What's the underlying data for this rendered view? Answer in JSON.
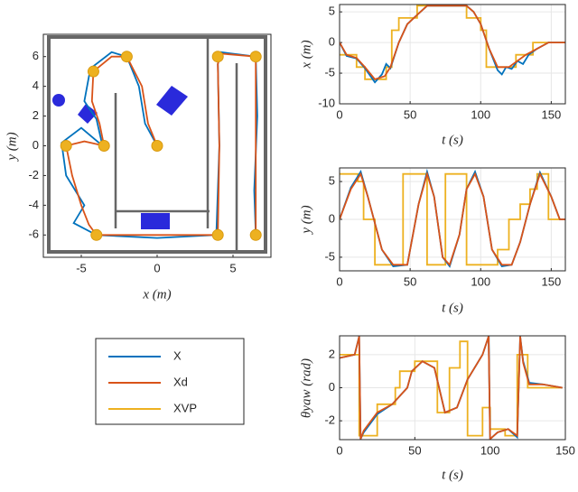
{
  "chart_data": [
    {
      "type": "trajectory",
      "xlabel": "x (m)",
      "ylabel": "y (m)",
      "xlim": [
        -7.5,
        7.5
      ],
      "ylim": [
        -7.5,
        7.5
      ],
      "xticks": [
        -5,
        0,
        5
      ],
      "yticks": [
        -6,
        -4,
        -2,
        0,
        2,
        4,
        6
      ],
      "grid": false,
      "series": [
        {
          "name": "X",
          "color": "#0072bd",
          "mode": "line",
          "x": [
            0,
            -0.8,
            -1.2,
            -2,
            -3,
            -4.4,
            -4.8,
            -4,
            -3.6,
            -5,
            -6.3,
            -6,
            -4.8,
            -5.5,
            -4,
            0,
            3.9,
            4.1,
            4,
            4.2,
            6.5,
            6.6,
            6.4,
            6.5
          ],
          "values": [
            0,
            1.5,
            4,
            6,
            6.3,
            5.2,
            3,
            1.8,
            0,
            1.2,
            0.2,
            -2,
            -4,
            -5.2,
            -6,
            -6.2,
            -6,
            0,
            5.5,
            6.3,
            6,
            2,
            -3,
            -6
          ]
        },
        {
          "name": "Xd",
          "color": "#d95319",
          "mode": "line",
          "x": [
            0,
            -0.6,
            -1,
            -2,
            -3,
            -4.2,
            -4.3,
            -3.8,
            -3.5,
            -4.8,
            -6,
            -5.6,
            -5,
            -4.5,
            -4,
            0,
            4,
            4.1,
            4,
            4.2,
            6.5,
            6.5,
            6.5,
            6.5
          ],
          "values": [
            0,
            1.5,
            4,
            6,
            6,
            5,
            3,
            1.5,
            0,
            0.3,
            0,
            -2,
            -4,
            -5.3,
            -6,
            -6,
            -6,
            0,
            5.5,
            6.2,
            6,
            2,
            -3,
            -6
          ]
        },
        {
          "name": "XVP",
          "color": "#edb120",
          "mode": "markers",
          "x": [
            -4.2,
            -2,
            -6,
            -3.5,
            0,
            4,
            6.5,
            -4,
            4,
            6.5
          ],
          "values": [
            5,
            6,
            0,
            0,
            0,
            6,
            6,
            -6,
            -6,
            -6
          ]
        }
      ]
    },
    {
      "type": "line",
      "xlabel": "t (s)",
      "ylabel": "x (m)",
      "xlim": [
        0,
        160
      ],
      "ylim": [
        -10,
        6.2
      ],
      "xticks": [
        0,
        50,
        100,
        150
      ],
      "yticks": [
        -10,
        -5,
        0,
        5
      ],
      "grid": true,
      "series": [
        {
          "color": "#edb120",
          "x": [
            0,
            12,
            12,
            18,
            18,
            33,
            33,
            37,
            37,
            42,
            42,
            55,
            55,
            90,
            90,
            100,
            100,
            104,
            104,
            125,
            125,
            137,
            137,
            160
          ],
          "values": [
            -2,
            -2,
            -4,
            -4,
            -6,
            -6,
            -4,
            -4,
            2,
            2,
            4,
            4,
            6,
            6,
            4,
            4,
            2,
            2,
            -4,
            -4,
            -2,
            -2,
            0,
            0
          ]
        },
        {
          "color": "#0072bd",
          "x": [
            0,
            5,
            12,
            18,
            25,
            30,
            33,
            36,
            42,
            48,
            55,
            62,
            90,
            95,
            100,
            106,
            112,
            115,
            118,
            122,
            126,
            130,
            134,
            140,
            148,
            160
          ],
          "values": [
            0,
            -2.2,
            -2.6,
            -4.2,
            -6.5,
            -5.2,
            -3.5,
            -4.2,
            0,
            3,
            4.5,
            6,
            6,
            5,
            3,
            -1,
            -4.5,
            -5.2,
            -4,
            -4.3,
            -3,
            -3.5,
            -2,
            -1,
            0,
            0
          ]
        },
        {
          "color": "#d95319",
          "x": [
            0,
            5,
            12,
            18,
            25,
            32,
            36,
            42,
            48,
            55,
            62,
            90,
            95,
            100,
            106,
            112,
            120,
            126,
            132,
            140,
            148,
            160
          ],
          "values": [
            0,
            -2,
            -2.5,
            -4,
            -6,
            -5.5,
            -4,
            0,
            3,
            4.5,
            6,
            6,
            5,
            3,
            -1,
            -4,
            -4,
            -3,
            -2,
            -1,
            0,
            0
          ]
        }
      ]
    },
    {
      "type": "line",
      "xlabel": "t (s)",
      "ylabel": "y (m)",
      "xlim": [
        0,
        160
      ],
      "ylim": [
        -6.8,
        6.8
      ],
      "xticks": [
        0,
        50,
        100,
        150
      ],
      "yticks": [
        -5,
        0,
        5
      ],
      "grid": true,
      "series": [
        {
          "color": "#edb120",
          "x": [
            0,
            13,
            13,
            17,
            17,
            25,
            25,
            45,
            45,
            62,
            62,
            75,
            75,
            90,
            90,
            112,
            112,
            120,
            120,
            128,
            128,
            135,
            135,
            140,
            140,
            148,
            148,
            160
          ],
          "values": [
            6,
            6,
            5,
            5,
            0,
            0,
            -6,
            -6,
            6,
            6,
            -6,
            -6,
            6,
            6,
            -6,
            -6,
            -4,
            -4,
            0,
            0,
            2,
            2,
            4,
            4,
            6,
            6,
            0,
            0
          ]
        },
        {
          "color": "#0072bd",
          "x": [
            0,
            8,
            15,
            20,
            30,
            38,
            48,
            56,
            62,
            67,
            73,
            78,
            85,
            90,
            96,
            102,
            108,
            115,
            122,
            128,
            135,
            142,
            150,
            156,
            160
          ],
          "values": [
            0,
            4.2,
            6.3,
            3,
            -4,
            -6.2,
            -6,
            2,
            6.3,
            3,
            -5,
            -6.2,
            -2,
            4,
            6.3,
            3,
            -4,
            -6.2,
            -6,
            -3,
            2,
            6.2,
            3,
            0,
            0
          ]
        },
        {
          "color": "#d95319",
          "x": [
            0,
            8,
            15,
            20,
            30,
            38,
            48,
            56,
            62,
            67,
            73,
            78,
            85,
            90,
            96,
            102,
            108,
            115,
            122,
            128,
            135,
            142,
            150,
            156,
            160
          ],
          "values": [
            0,
            4,
            6,
            3,
            -4,
            -6,
            -6,
            2,
            6,
            3,
            -5,
            -6,
            -2,
            4,
            6,
            3,
            -4,
            -6,
            -6,
            -3,
            2,
            6,
            3,
            0,
            0
          ]
        }
      ]
    },
    {
      "type": "line",
      "xlabel": "t (s)",
      "ylabel": "θyaw (rad)",
      "xlim": [
        0,
        150
      ],
      "ylim": [
        -3.14,
        3.14
      ],
      "xticks": [
        0,
        50,
        100,
        150
      ],
      "yticks": [
        -2,
        0,
        2
      ],
      "grid": true,
      "series": [
        {
          "color": "#edb120",
          "x": [
            0,
            13,
            13,
            25,
            25,
            37,
            37,
            40,
            40,
            50,
            50,
            65,
            65,
            73,
            73,
            80,
            80,
            85,
            85,
            95,
            95,
            100,
            100,
            110,
            110,
            118,
            118,
            125,
            125,
            148
          ],
          "values": [
            2,
            2,
            -2.9,
            -2.9,
            -1,
            -1,
            0,
            0,
            1,
            1,
            1.6,
            1.6,
            -1.5,
            -1.5,
            1.2,
            1.2,
            2.8,
            2.8,
            -2.9,
            -2.9,
            -1.2,
            -1.2,
            -2.5,
            -2.5,
            -2.9,
            -2.9,
            2,
            2,
            0,
            0
          ]
        },
        {
          "color": "#0072bd",
          "x": [
            0,
            10,
            13,
            14,
            16,
            25,
            35,
            45,
            48,
            55,
            63,
            70,
            78,
            85,
            95,
            99,
            100,
            105,
            112,
            118,
            120,
            122,
            126,
            135,
            148
          ],
          "values": [
            1.8,
            2,
            3.1,
            -3.1,
            -2.7,
            -1.6,
            -1,
            0,
            1,
            1.6,
            1.2,
            -1.5,
            -1.2,
            0.5,
            2,
            3.1,
            -3.1,
            -2.7,
            -2.5,
            -3,
            3.1,
            1.6,
            0.3,
            0.2,
            0
          ]
        },
        {
          "color": "#d95319",
          "x": [
            0,
            10,
            13,
            14,
            16,
            25,
            35,
            45,
            48,
            55,
            63,
            70,
            78,
            85,
            95,
            99,
            100,
            105,
            112,
            118,
            120,
            122,
            126,
            135,
            148
          ],
          "values": [
            1.8,
            2,
            3.1,
            -3.1,
            -2.6,
            -1.5,
            -1,
            0,
            1,
            1.6,
            1.2,
            -1.5,
            -1.2,
            0.5,
            2,
            3.1,
            -3.1,
            -2.7,
            -2.5,
            -2.9,
            3.1,
            1.5,
            0.2,
            0.2,
            0
          ]
        }
      ]
    }
  ]
}
